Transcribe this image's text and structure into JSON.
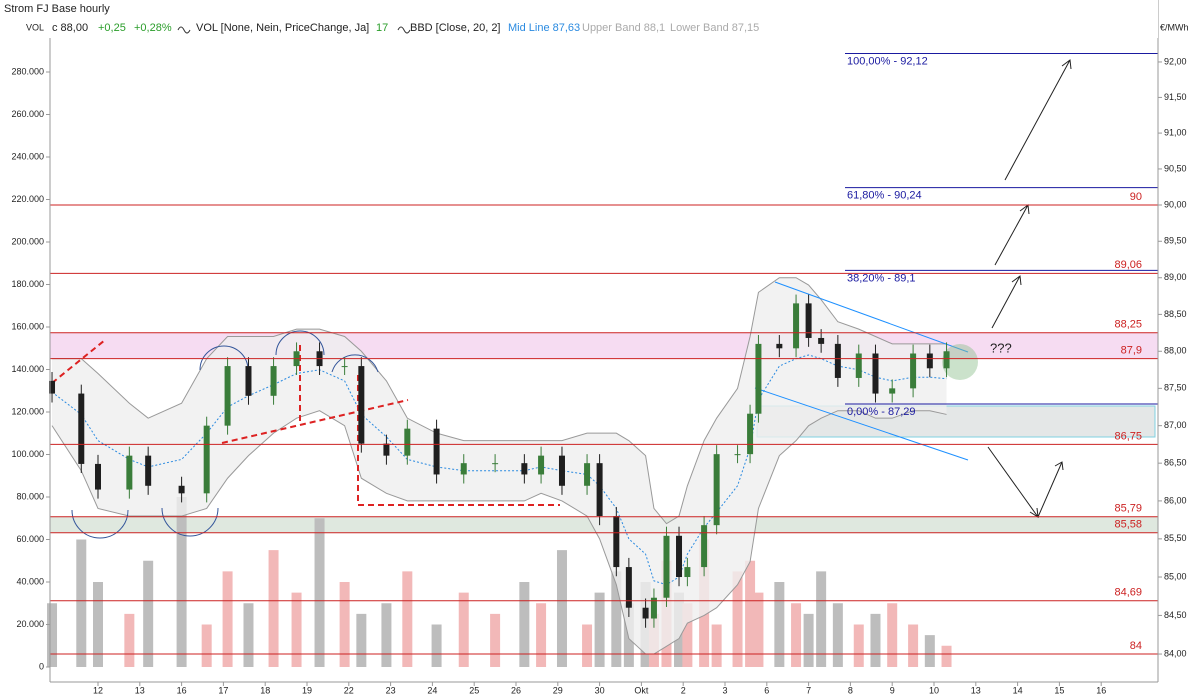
{
  "header": {
    "title": "Strom FJ Base hourly",
    "vol_label": "VOL",
    "close": "c 88,00",
    "change": "+0,25",
    "change_pct": "+0,28%",
    "vol_indicator": "VOL [None, Nein, PriceChange, Ja]",
    "vol_value": "17",
    "bbd_indicator": "BBD [Close, 20, 2]",
    "mid_line": "Mid Line 87,63",
    "upper_band": "Upper Band 88,1",
    "lower_band": "Lower Band 87,15",
    "unit": "€/MWh"
  },
  "chart_data": {
    "type": "candlestick",
    "ylog": true,
    "x_labels": [
      "12",
      "13",
      "16",
      "17",
      "18",
      "19",
      "22",
      "23",
      "24",
      "25",
      "26",
      "29",
      "30",
      "Okt",
      "2",
      "3",
      "6",
      "7",
      "8",
      "9",
      "10",
      "13",
      "14",
      "15",
      "16"
    ],
    "up_color": "#3a7d3a",
    "down_color": "#1f1f1f",
    "candles": {
      "x": [
        -1.1,
        -0.4,
        0,
        0.75,
        1.2,
        2,
        2.6,
        3.1,
        3.6,
        4.2,
        4.75,
        5.3,
        5.9,
        6.3,
        6.9,
        7.4,
        8.1,
        8.75,
        9.5,
        10.2,
        10.6,
        11.1,
        11.7,
        12,
        12.4,
        12.7,
        13.1,
        13.3,
        13.6,
        13.9,
        14.1,
        14.5,
        14.8,
        15.3,
        15.6,
        15.8,
        16.3,
        16.7,
        17.0,
        17.3,
        17.7,
        18.2,
        18.6,
        19.0,
        19.5,
        19.9,
        20.3
      ],
      "open": [
        87.6,
        87.43,
        86.49,
        86.15,
        86.6,
        86.2,
        86.1,
        87.0,
        87.8,
        87.4,
        87.8,
        88.0,
        87.8,
        87.8,
        86.76,
        86.6,
        86.96,
        86.35,
        86.5,
        86.5,
        86.35,
        86.6,
        86.2,
        86.5,
        85.8,
        85.13,
        84.6,
        84.46,
        84.73,
        85.54,
        85.0,
        85.13,
        85.68,
        86.62,
        86.62,
        87.16,
        88.1,
        88.04,
        88.65,
        88.18,
        88.1,
        87.64,
        87.97,
        87.43,
        87.5,
        87.97,
        87.77
      ],
      "high": [
        87.72,
        87.55,
        86.61,
        86.72,
        86.72,
        86.32,
        87.12,
        87.92,
        87.92,
        87.92,
        88.12,
        88.12,
        87.92,
        87.92,
        86.88,
        87.08,
        87.08,
        86.62,
        86.62,
        86.62,
        86.72,
        86.72,
        86.62,
        86.62,
        85.92,
        85.25,
        84.72,
        84.85,
        85.66,
        85.66,
        85.25,
        85.8,
        86.74,
        86.74,
        87.28,
        88.22,
        88.22,
        88.77,
        88.77,
        88.3,
        88.22,
        88.09,
        88.09,
        87.62,
        88.09,
        88.09,
        88.12
      ],
      "low": [
        87.31,
        86.37,
        86.03,
        86.03,
        86.08,
        85.98,
        85.98,
        86.88,
        87.28,
        87.28,
        87.68,
        87.68,
        87.68,
        86.64,
        86.48,
        86.48,
        86.23,
        86.23,
        86.38,
        86.23,
        86.23,
        86.08,
        86.08,
        85.68,
        85.01,
        84.48,
        84.34,
        84.34,
        84.61,
        84.88,
        84.88,
        85.01,
        85.56,
        86.5,
        86.5,
        87.04,
        87.92,
        87.92,
        88.06,
        87.98,
        87.52,
        87.52,
        87.31,
        87.31,
        87.38,
        87.65,
        87.65
      ],
      "close": [
        87.43,
        86.49,
        86.15,
        86.6,
        86.2,
        86.1,
        87.0,
        87.8,
        87.4,
        87.8,
        88.0,
        87.8,
        87.8,
        86.76,
        86.6,
        86.96,
        86.35,
        86.5,
        86.5,
        86.35,
        86.6,
        86.2,
        86.5,
        85.8,
        85.13,
        84.6,
        84.46,
        84.73,
        85.54,
        85.0,
        85.13,
        85.68,
        86.62,
        86.62,
        87.16,
        88.1,
        88.04,
        88.65,
        88.18,
        88.1,
        87.64,
        87.97,
        87.43,
        87.5,
        87.97,
        87.77,
        88.0
      ]
    },
    "bands": {
      "color": "#999999",
      "fill": "#efefef",
      "mid_color": "#2a8ae0",
      "upper": [
        87.9,
        87.9,
        87.7,
        87.3,
        87.1,
        87.3,
        87.9,
        88.2,
        88.2,
        88.2,
        88.3,
        88.3,
        88.2,
        88.0,
        87.6,
        87.1,
        86.9,
        86.8,
        86.8,
        86.8,
        86.8,
        86.8,
        86.9,
        86.9,
        86.9,
        86.8,
        86.6,
        85.9,
        85.7,
        85.8,
        86.2,
        86.8,
        87.1,
        87.5,
        88.2,
        88.8,
        89.0,
        89.0,
        88.9,
        88.7,
        88.4,
        88.3,
        88.2,
        88.1,
        88.1,
        88.1,
        88.1
      ],
      "lower": [
        87.0,
        86.4,
        85.9,
        85.8,
        85.8,
        85.8,
        85.9,
        86.3,
        86.6,
        86.9,
        87.1,
        87.2,
        87.0,
        86.3,
        86.1,
        86.0,
        86.0,
        86.0,
        86.0,
        86.0,
        86.1,
        86.0,
        85.8,
        85.5,
        84.9,
        84.2,
        84.0,
        84.0,
        84.1,
        84.2,
        84.4,
        84.5,
        84.6,
        84.9,
        85.2,
        85.9,
        86.6,
        86.8,
        87.0,
        87.1,
        87.2,
        87.2,
        87.1,
        87.1,
        87.2,
        87.2,
        87.15
      ],
      "mid": [
        87.45,
        87.15,
        86.8,
        86.55,
        86.45,
        86.55,
        86.9,
        87.25,
        87.4,
        87.55,
        87.7,
        87.75,
        87.6,
        87.15,
        86.85,
        86.55,
        86.45,
        86.4,
        86.4,
        86.4,
        86.45,
        86.4,
        86.35,
        86.2,
        85.9,
        85.5,
        85.3,
        84.95,
        84.9,
        85.0,
        85.3,
        85.65,
        85.85,
        86.2,
        86.7,
        87.35,
        87.8,
        87.9,
        87.95,
        87.9,
        87.8,
        87.75,
        87.65,
        87.6,
        87.65,
        87.65,
        87.63
      ]
    },
    "volume": {
      "up_color": "#f2b8b8",
      "down_color": "#bdbdbd",
      "ylim": [
        -7059,
        313882
      ],
      "values": [
        30000,
        60000,
        40000,
        25000,
        50000,
        80000,
        20000,
        45000,
        30000,
        55000,
        35000,
        70000,
        40000,
        25000,
        30000,
        45000,
        20000,
        35000,
        25000,
        40000,
        30000,
        55000,
        20000,
        35000,
        45000,
        30000,
        40000,
        25000,
        50000,
        35000,
        30000,
        60000,
        20000,
        45000,
        50000,
        35000,
        40000,
        30000,
        25000,
        45000,
        30000,
        20000,
        25000,
        30000,
        20000,
        15000,
        10000
      ],
      "yticks": [
        0,
        {
          "value": 20000,
          "label": "20.000"
        },
        {
          "value": 40000,
          "label": "40.000"
        },
        {
          "value": 60000,
          "label": "60.000"
        },
        {
          "value": 80000,
          "label": "80.000"
        },
        {
          "value": 100000,
          "label": "100.000"
        },
        {
          "value": 120000,
          "label": "120.000"
        },
        {
          "value": 140000,
          "label": "140.000"
        },
        {
          "value": 160000,
          "label": "160.000"
        },
        {
          "value": 180000,
          "label": "180.000"
        },
        {
          "value": 200000,
          "label": "200.000"
        },
        {
          "value": 220000,
          "label": "220.000"
        },
        {
          "value": 240000,
          "label": "240.000"
        },
        {
          "value": 260000,
          "label": "260.000"
        },
        {
          "value": 280000,
          "label": "280.000"
        }
      ]
    },
    "ylim": [
      83.64,
      92.88
    ],
    "yticks": [
      {
        "value": 84,
        "label": "84,00"
      },
      {
        "value": 84.5,
        "label": "84,50"
      },
      {
        "value": 85,
        "label": "85,00"
      },
      {
        "value": 85.5,
        "label": "85,50"
      },
      {
        "value": 86,
        "label": "86,00"
      },
      {
        "value": 86.5,
        "label": "86,50"
      },
      {
        "value": 87,
        "label": "87,00"
      },
      {
        "value": 87.5,
        "label": "87,50"
      },
      {
        "value": 88,
        "label": "88,00"
      },
      {
        "value": 88.5,
        "label": "88,50"
      },
      {
        "value": 89,
        "label": "89,00"
      },
      {
        "value": 89.5,
        "label": "89,50"
      },
      {
        "value": 90,
        "label": "90,00"
      },
      {
        "value": 90.5,
        "label": "90,50"
      },
      {
        "value": 91,
        "label": "91,00"
      },
      {
        "value": 91.5,
        "label": "91,50"
      },
      {
        "value": 92,
        "label": "92,00"
      }
    ],
    "level_color": "#cc2222",
    "levels": [
      90,
      {
        "value": 89.06,
        "label": "89,06"
      },
      {
        "value": 88.25,
        "label": "88,25"
      },
      {
        "value": 87.9,
        "label": "87,9"
      },
      {
        "value": 86.75,
        "label": "86,75"
      },
      {
        "value": 85.79,
        "label": "85,79"
      },
      {
        "value": 85.58,
        "label": "85,58"
      },
      {
        "value": 84.69,
        "label": "84,69"
      },
      84
    ],
    "resistance_zone_color": "#f6dcf2",
    "support_zone_color": "#dfe8df",
    "fib_color": "#1a1aa0",
    "fib": [
      {
        "value": 92.12,
        "label": "100,00% - 92,12"
      },
      {
        "value": 90.24,
        "label": "61,80% - 90,24"
      },
      {
        "value": 89.1,
        "label": "38,20% - 89,1"
      },
      {
        "value": 87.29,
        "label": "0,00% - 87,29"
      }
    ],
    "annotation": "???"
  }
}
